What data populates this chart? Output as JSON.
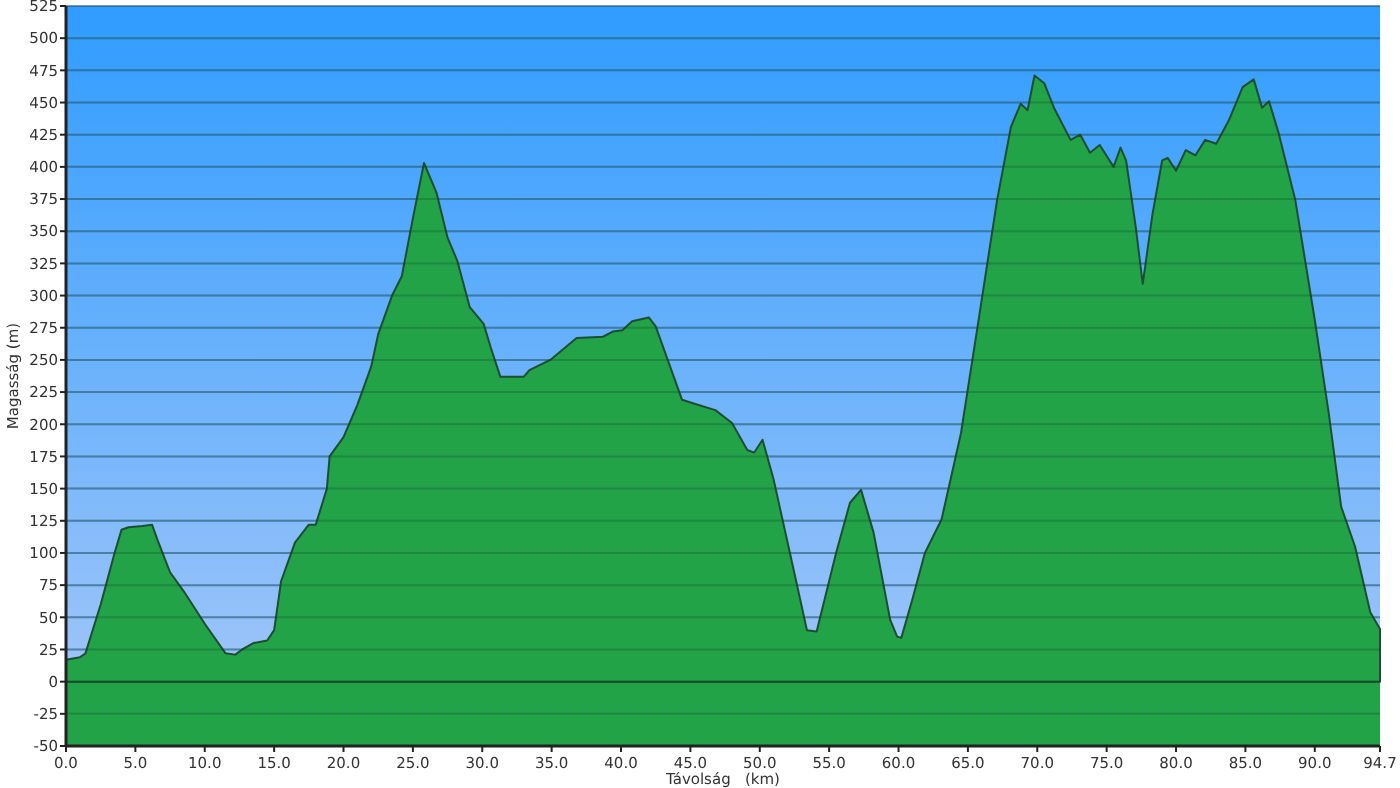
{
  "chart_data": {
    "type": "area",
    "xlabel": "Távolság   (km)",
    "ylabel": "Magasság (m)",
    "x": [
      0,
      1,
      1.4,
      2.5,
      3.5,
      4,
      4.5,
      5.5,
      6.2,
      6.6,
      7.5,
      8.5,
      10,
      11.5,
      12.2,
      12.7,
      13.5,
      14.5,
      15,
      15.5,
      16.5,
      17.5,
      18,
      18.8,
      19,
      20,
      21,
      22,
      22.5,
      23.5,
      24.2,
      25,
      25.8,
      26.7,
      27.5,
      28.2,
      29.1,
      30.1,
      30.6,
      31.3,
      33,
      33.4,
      34.9,
      36.8,
      38.7,
      39.4,
      40.1,
      40.8,
      42,
      42.5,
      44.4,
      45.3,
      46.8,
      48,
      49.1,
      49.6,
      50.2,
      51,
      52.5,
      53.4,
      54.1,
      55.5,
      56.5,
      57.3,
      58.2,
      59.4,
      59.9,
      60.2,
      61,
      61.9,
      63.1,
      64.5,
      65.7,
      67.1,
      68.1,
      68.8,
      69.3,
      69.8,
      70.5,
      71.2,
      72.4,
      73.1,
      73.8,
      74.5,
      75.5,
      76,
      76.4,
      77.1,
      77.6,
      78.3,
      79,
      79.4,
      80,
      80.7,
      81.4,
      82.1,
      82.9,
      83.8,
      84.8,
      85.6,
      86.2,
      86.7,
      87.4,
      88.6,
      90,
      91,
      91.9,
      92.9,
      94,
      94.7
    ],
    "series": [
      {
        "color": "#22a348",
        "values": [
          17,
          19,
          22,
          60,
          100,
          118,
          120,
          121,
          122,
          110,
          85,
          70,
          45,
          22,
          21,
          25,
          30,
          32,
          40,
          78,
          108,
          122,
          122,
          150,
          175,
          190,
          215,
          245,
          270,
          300,
          315,
          360,
          403,
          380,
          345,
          327,
          291,
          278,
          260,
          237,
          237,
          242,
          250,
          267,
          268,
          272,
          273,
          280,
          283,
          276,
          219,
          216,
          211,
          201,
          180,
          178,
          188,
          157,
          84,
          40,
          39,
          100,
          139,
          149,
          116,
          48,
          35,
          34,
          64,
          100,
          126,
          193,
          276,
          374,
          431,
          449,
          444,
          471,
          465,
          446,
          421,
          425,
          411,
          417,
          400,
          415,
          405,
          353,
          309,
          363,
          405,
          407,
          397,
          413,
          409,
          421,
          418,
          436,
          462,
          468,
          446,
          451,
          426,
          374,
          281,
          209,
          136,
          105,
          54,
          41
        ]
      }
    ],
    "xlim": [
      0,
      94.7
    ],
    "ylim": [
      -50,
      525
    ],
    "xticks": [
      {
        "value": 0,
        "label": "0.0"
      },
      {
        "value": 5,
        "label": "5.0"
      },
      {
        "value": 10,
        "label": "10.0"
      },
      {
        "value": 15,
        "label": "15.0"
      },
      {
        "value": 20,
        "label": "20.0"
      },
      {
        "value": 25,
        "label": "25.0"
      },
      {
        "value": 30,
        "label": "30.0"
      },
      {
        "value": 35,
        "label": "35.0"
      },
      {
        "value": 40,
        "label": "40.0"
      },
      {
        "value": 45,
        "label": "45.0"
      },
      {
        "value": 50,
        "label": "50.0"
      },
      {
        "value": 55,
        "label": "55.0"
      },
      {
        "value": 60,
        "label": "60.0"
      },
      {
        "value": 65,
        "label": "65.0"
      },
      {
        "value": 70,
        "label": "70.0"
      },
      {
        "value": 75,
        "label": "75.0"
      },
      {
        "value": 80,
        "label": "80.0"
      },
      {
        "value": 85,
        "label": "85.0"
      },
      {
        "value": 90,
        "label": "90.0"
      },
      94.7
    ],
    "yticks": [
      -50,
      -25,
      0,
      25,
      50,
      75,
      100,
      125,
      150,
      175,
      200,
      225,
      250,
      275,
      300,
      325,
      350,
      375,
      400,
      425,
      450,
      475,
      500,
      525
    ],
    "grid": "y"
  }
}
